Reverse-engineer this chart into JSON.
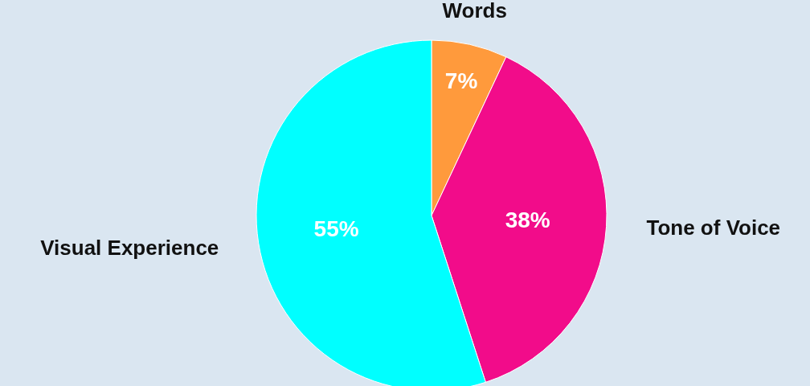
{
  "chart_data": {
    "type": "pie",
    "categories": [
      "Words",
      "Tone of Voice",
      "Visual Experience"
    ],
    "values": [
      7,
      38,
      55
    ],
    "colors": [
      "#ff9a3c",
      "#f20c8a",
      "#00ffff"
    ],
    "value_labels": [
      "7%",
      "38%",
      "55%"
    ],
    "legend": false
  }
}
